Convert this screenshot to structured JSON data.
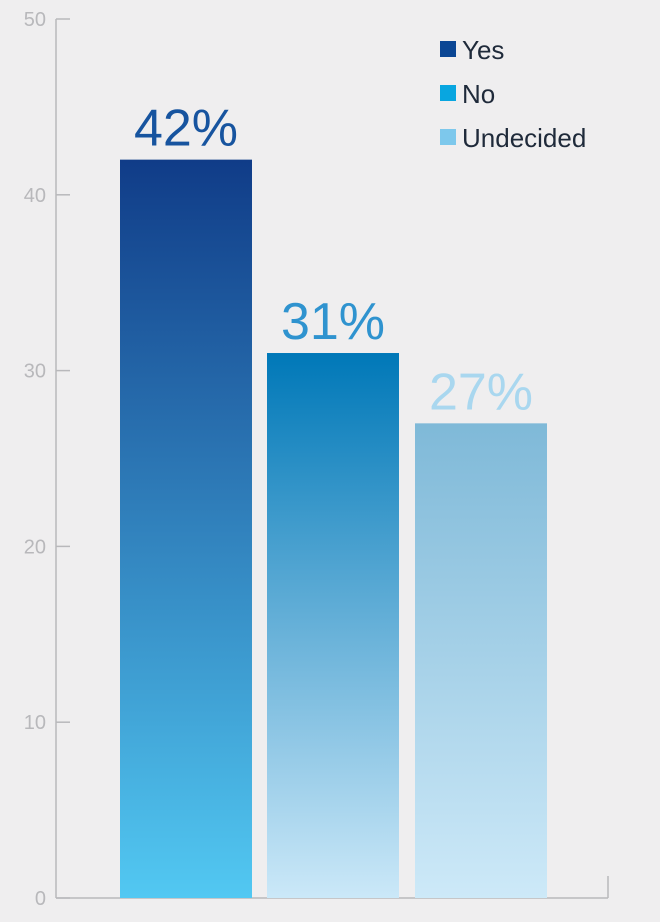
{
  "chart_data": {
    "type": "bar",
    "categories": [
      "Yes",
      "No",
      "Undecided"
    ],
    "values": [
      42,
      31,
      27
    ],
    "data_labels": [
      "42%",
      "31%",
      "27%"
    ],
    "ylim": [
      0,
      50
    ],
    "yticks": [
      0,
      10,
      20,
      30,
      40,
      50
    ],
    "ytick_labels": [
      "0",
      "10",
      "20",
      "30",
      "40",
      "50"
    ],
    "title": "",
    "xlabel": "",
    "ylabel": "",
    "grid": false,
    "legend": {
      "position": "top-right",
      "entries": [
        {
          "label": "Yes",
          "color": "#0b4694"
        },
        {
          "label": "No",
          "color": "#08a6e0"
        },
        {
          "label": "Undecided",
          "color": "#7dc8ec"
        }
      ]
    },
    "bar_gradients": [
      {
        "top": "#103c88",
        "bottom": "#52c8f2"
      },
      {
        "top": "#0078b8",
        "bottom": "#cbe8f8"
      },
      {
        "top": "#7fb9d8",
        "bottom": "#cde9f8"
      }
    ],
    "data_label_colors": [
      "#17549f",
      "#2f93cf",
      "#a9d7ef"
    ],
    "axis_color": "#b8b8bb"
  }
}
